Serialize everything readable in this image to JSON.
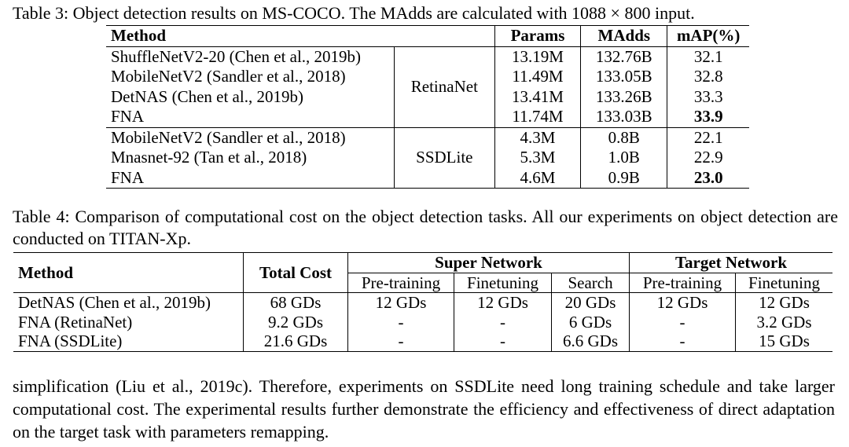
{
  "table3": {
    "caption": "Table 3: Object detection results on MS-COCO. The MAdds are calculated with 1088 × 800 input.",
    "headers": {
      "method": "Method",
      "params": "Params",
      "madds": "MAdds",
      "map": "mAP(%)"
    },
    "detectors": [
      "RetinaNet",
      "SSDLite"
    ],
    "rows": [
      {
        "method": "ShuffleNetV2-20 (Chen et al., 2019b)",
        "params": "13.19M",
        "madds": "132.76B",
        "map": "32.1"
      },
      {
        "method": "MobileNetV2 (Sandler et al., 2018)",
        "params": "11.49M",
        "madds": "133.05B",
        "map": "32.8"
      },
      {
        "method": "DetNAS (Chen et al., 2019b)",
        "params": "13.41M",
        "madds": "133.26B",
        "map": "33.3"
      },
      {
        "method": "FNA",
        "params": "11.74M",
        "madds": "133.03B",
        "map": "33.9"
      },
      {
        "method": "MobileNetV2 (Sandler et al., 2018)",
        "params": "4.3M",
        "madds": "0.8B",
        "map": "22.1"
      },
      {
        "method": "Mnasnet-92 (Tan et al., 2018)",
        "params": "5.3M",
        "madds": "1.0B",
        "map": "22.9"
      },
      {
        "method": "FNA",
        "params": "4.6M",
        "madds": "0.9B",
        "map": "23.0"
      }
    ]
  },
  "table4": {
    "caption": "Table 4: Comparison of computational cost on the object detection tasks. All our experiments on object detection are conducted on TITAN-Xp.",
    "headers": {
      "method": "Method",
      "total_cost": "Total Cost",
      "super_network": "Super Network",
      "target_network": "Target Network",
      "pretraining": "Pre-training",
      "finetuning": "Finetuning",
      "search": "Search"
    },
    "rows": [
      {
        "method": "DetNAS (Chen et al., 2019b)",
        "total": "68 GDs",
        "sn_pre": "12 GDs",
        "sn_fine": "12 GDs",
        "search": "20 GDs",
        "tn_pre": "12 GDs",
        "tn_fine": "12 GDs"
      },
      {
        "method": "FNA (RetinaNet)",
        "total": "9.2 GDs",
        "sn_pre": "-",
        "sn_fine": "-",
        "search": "6 GDs",
        "tn_pre": "-",
        "tn_fine": "3.2 GDs"
      },
      {
        "method": "FNA (SSDLite)",
        "total": "21.6 GDs",
        "sn_pre": "-",
        "sn_fine": "-",
        "search": "6.6 GDs",
        "tn_pre": "-",
        "tn_fine": "15 GDs"
      }
    ]
  },
  "body": {
    "paragraph": "simplification (Liu et al., 2019c). Therefore, experiments on SSDLite need long training schedule and take larger computational cost. The experimental results further demonstrate the efficiency and effectiveness of direct adaptation on the target task with parameters remapping."
  }
}
